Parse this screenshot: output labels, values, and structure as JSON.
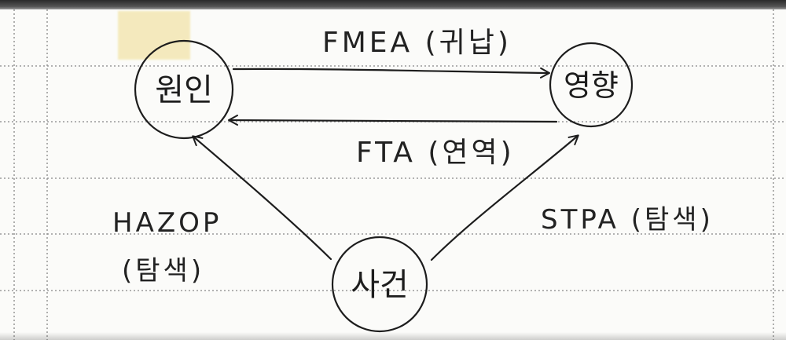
{
  "nodes": {
    "cause": {
      "label": "원인"
    },
    "effect": {
      "label": "영향"
    },
    "event": {
      "label": "사건"
    }
  },
  "edges": {
    "fmea": {
      "label": "FMEA (귀납)"
    },
    "fta": {
      "label": "FTA (연역)"
    },
    "hazop": {
      "label_line1": "HAZOP",
      "label_line2": "(탐색)"
    },
    "stpa": {
      "label": "STPA (탐색)"
    }
  },
  "colors": {
    "ink": "#1d1d1d",
    "ruled_line": "#9a9a9a",
    "margin_line": "#8f8f8f",
    "highlighter": "#f3e7b3"
  }
}
